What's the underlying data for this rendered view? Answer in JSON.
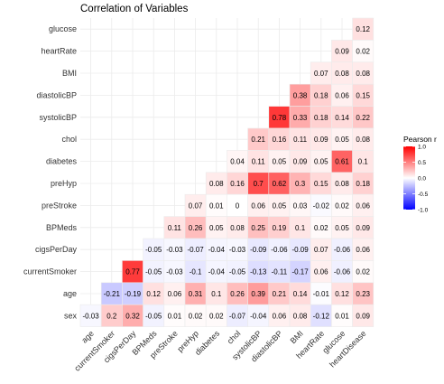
{
  "chart_data": {
    "type": "heatmap",
    "title": "Correlation of Variables",
    "x_labels": [
      "age",
      "currentSmoker",
      "cigsPerDay",
      "BPMeds",
      "preStroke",
      "preHyp",
      "diabetes",
      "chol",
      "systolicBP",
      "diastolicBP",
      "BMI",
      "heartRate",
      "glucose",
      "heartDisease"
    ],
    "y_labels_top_to_bottom": [
      "glucose",
      "heartRate",
      "BMI",
      "diastolicBP",
      "systolicBP",
      "chol",
      "diabetes",
      "preHyp",
      "preStroke",
      "BPMeds",
      "cigsPerDay",
      "currentSmoker",
      "age",
      "sex"
    ],
    "rows": [
      {
        "row": "glucose",
        "values": [
          null,
          null,
          null,
          null,
          null,
          null,
          null,
          null,
          null,
          null,
          null,
          null,
          null,
          0.12
        ]
      },
      {
        "row": "heartRate",
        "values": [
          null,
          null,
          null,
          null,
          null,
          null,
          null,
          null,
          null,
          null,
          null,
          null,
          0.09,
          0.02
        ]
      },
      {
        "row": "BMI",
        "values": [
          null,
          null,
          null,
          null,
          null,
          null,
          null,
          null,
          null,
          null,
          null,
          0.07,
          0.08,
          0.08
        ]
      },
      {
        "row": "diastolicBP",
        "values": [
          null,
          null,
          null,
          null,
          null,
          null,
          null,
          null,
          null,
          null,
          0.38,
          0.18,
          0.06,
          0.15
        ]
      },
      {
        "row": "systolicBP",
        "values": [
          null,
          null,
          null,
          null,
          null,
          null,
          null,
          null,
          null,
          0.78,
          0.33,
          0.18,
          0.14,
          0.22
        ]
      },
      {
        "row": "chol",
        "values": [
          null,
          null,
          null,
          null,
          null,
          null,
          null,
          null,
          0.21,
          0.16,
          0.11,
          0.09,
          0.05,
          0.08
        ]
      },
      {
        "row": "diabetes",
        "values": [
          null,
          null,
          null,
          null,
          null,
          null,
          null,
          0.04,
          0.11,
          0.05,
          0.09,
          0.05,
          0.61,
          0.1
        ]
      },
      {
        "row": "preHyp",
        "values": [
          null,
          null,
          null,
          null,
          null,
          null,
          0.08,
          0.16,
          0.7,
          0.62,
          0.3,
          0.15,
          0.08,
          0.18
        ]
      },
      {
        "row": "preStroke",
        "values": [
          null,
          null,
          null,
          null,
          null,
          0.07,
          0.01,
          0,
          0.06,
          0.05,
          0.03,
          -0.02,
          0.02,
          0.06
        ]
      },
      {
        "row": "BPMeds",
        "values": [
          null,
          null,
          null,
          null,
          0.11,
          0.26,
          0.05,
          0.08,
          0.25,
          0.19,
          0.1,
          0.02,
          0.05,
          0.09
        ]
      },
      {
        "row": "cigsPerDay",
        "values": [
          null,
          null,
          null,
          -0.05,
          -0.03,
          -0.07,
          -0.04,
          -0.03,
          -0.09,
          -0.06,
          -0.09,
          0.07,
          -0.06,
          0.06
        ]
      },
      {
        "row": "currentSmoker",
        "values": [
          null,
          null,
          0.77,
          -0.05,
          -0.03,
          -0.1,
          -0.04,
          -0.05,
          -0.13,
          -0.11,
          -0.17,
          0.06,
          -0.06,
          0.02
        ]
      },
      {
        "row": "age",
        "values": [
          null,
          -0.21,
          -0.19,
          0.12,
          0.06,
          0.31,
          0.1,
          0.26,
          0.39,
          0.21,
          0.14,
          -0.01,
          0.12,
          0.23
        ]
      },
      {
        "row": "sex",
        "values": [
          -0.03,
          0.2,
          0.32,
          -0.05,
          0.01,
          0.02,
          0.02,
          -0.07,
          -0.04,
          0.06,
          0.08,
          -0.12,
          0.01,
          0.09
        ]
      }
    ],
    "legend": {
      "title": "Pearson r",
      "ticks": [
        "1.0",
        "0.5",
        "0.0",
        "-0.5",
        "-1.0"
      ],
      "range": [
        -1,
        1
      ],
      "placement": "right"
    },
    "colors": {
      "low": "#0000ff",
      "mid": "#ffffff",
      "high": "#ff0000"
    },
    "grid": true
  }
}
